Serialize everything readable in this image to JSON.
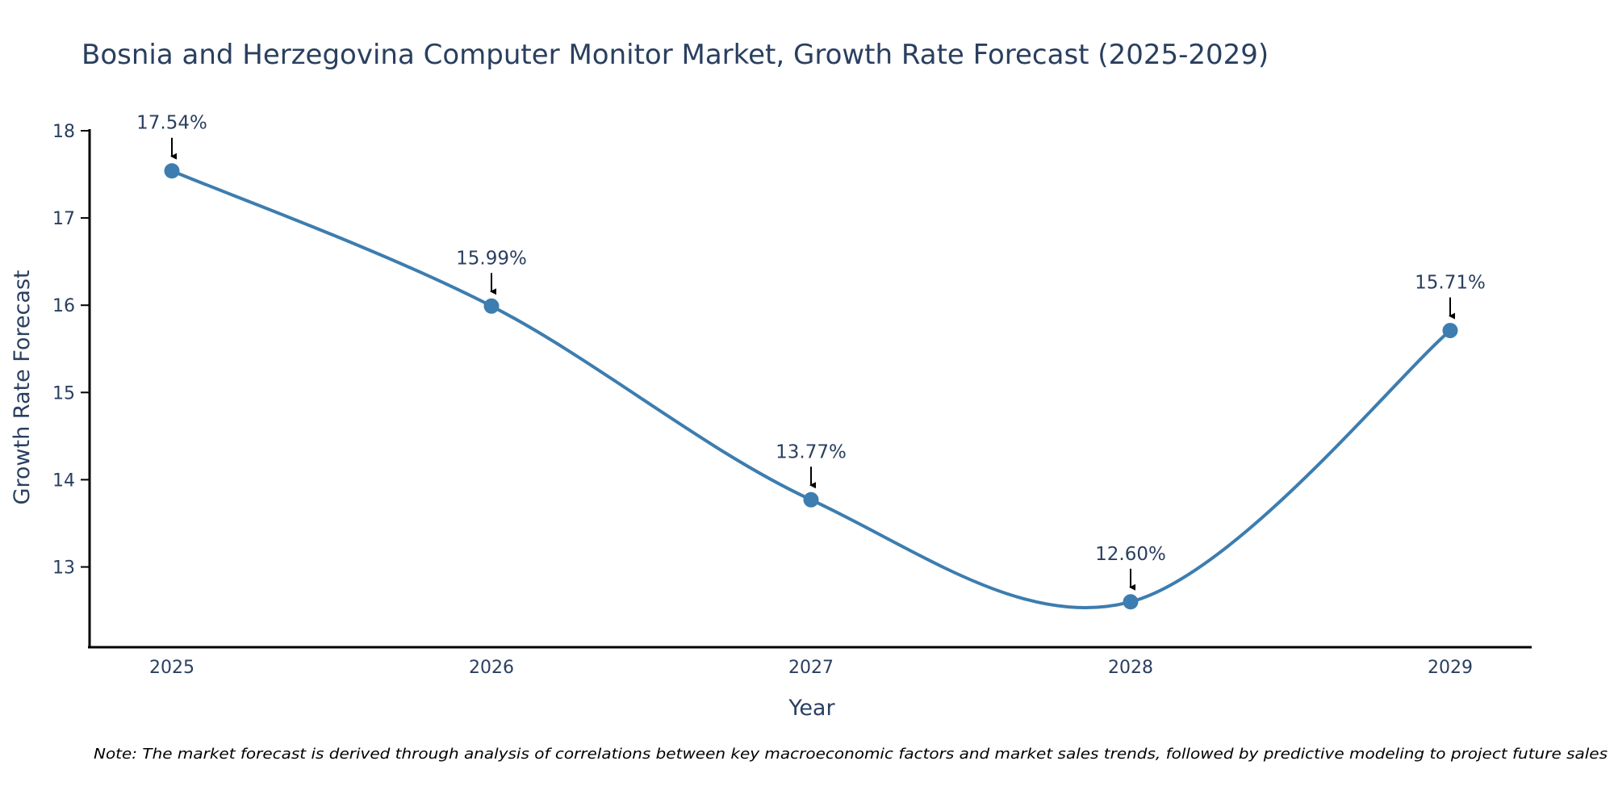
{
  "chart_data": {
    "type": "line",
    "title": "Bosnia and Herzegovina Computer Monitor Market, Growth Rate Forecast (2025-2029)",
    "xlabel": "Year",
    "ylabel": "Growth Rate Forecast",
    "categories": [
      "2025",
      "2026",
      "2027",
      "2028",
      "2029"
    ],
    "series": [
      {
        "name": "Growth Rate Forecast",
        "values": [
          17.54,
          15.99,
          13.77,
          12.6,
          15.71
        ],
        "labels": [
          "17.54%",
          "15.99%",
          "13.77%",
          "12.60%",
          "15.71%"
        ],
        "color": "#3d7daf",
        "line_shape": "spline"
      }
    ],
    "y_ticks": [
      13,
      14,
      15,
      16,
      17,
      18
    ],
    "ylim": [
      12.08,
      18.0
    ],
    "grid": false,
    "note": "Note: The market forecast is derived through analysis of correlations between key macroeconomic factors and market sales trends, followed by predictive modeling to project future sales"
  }
}
